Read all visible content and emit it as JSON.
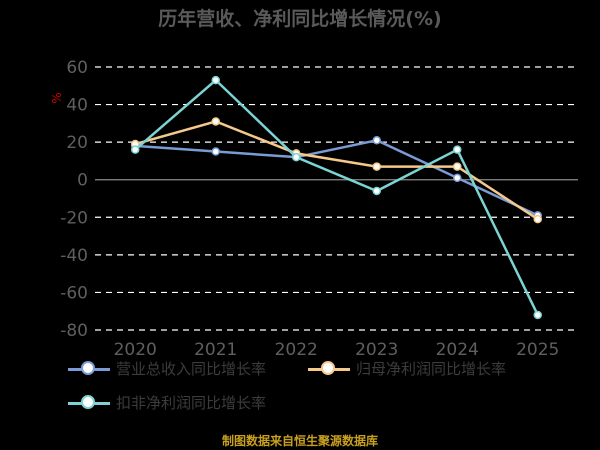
{
  "title": "历年营收、净利同比增长情况(%)",
  "footer": "制图数据来自恒生聚源数据库",
  "chart_data": {
    "type": "line",
    "title": "历年营收、净利同比增长情况(%)",
    "ylabel": "%",
    "xlabel": "",
    "x": [
      "2020",
      "2021",
      "2022",
      "2023",
      "2024",
      "2025"
    ],
    "ylim": [
      -80,
      60
    ],
    "yticks": [
      60,
      40,
      20,
      0,
      -20,
      -40,
      -60,
      -80
    ],
    "grid": true,
    "legend_position": "bottom",
    "series": [
      {
        "name": "营业总收入同比增长率",
        "color": "#7b9bd6",
        "values": [
          18,
          15,
          12,
          21,
          1,
          -19
        ]
      },
      {
        "name": "归母净利润同比增长率",
        "color": "#f5c98a",
        "values": [
          19,
          31,
          14,
          7,
          7,
          -21
        ]
      },
      {
        "name": "扣非净利润同比增长率",
        "color": "#7dd3d3",
        "values": [
          16,
          53,
          12,
          -6,
          16,
          -72
        ]
      }
    ]
  }
}
